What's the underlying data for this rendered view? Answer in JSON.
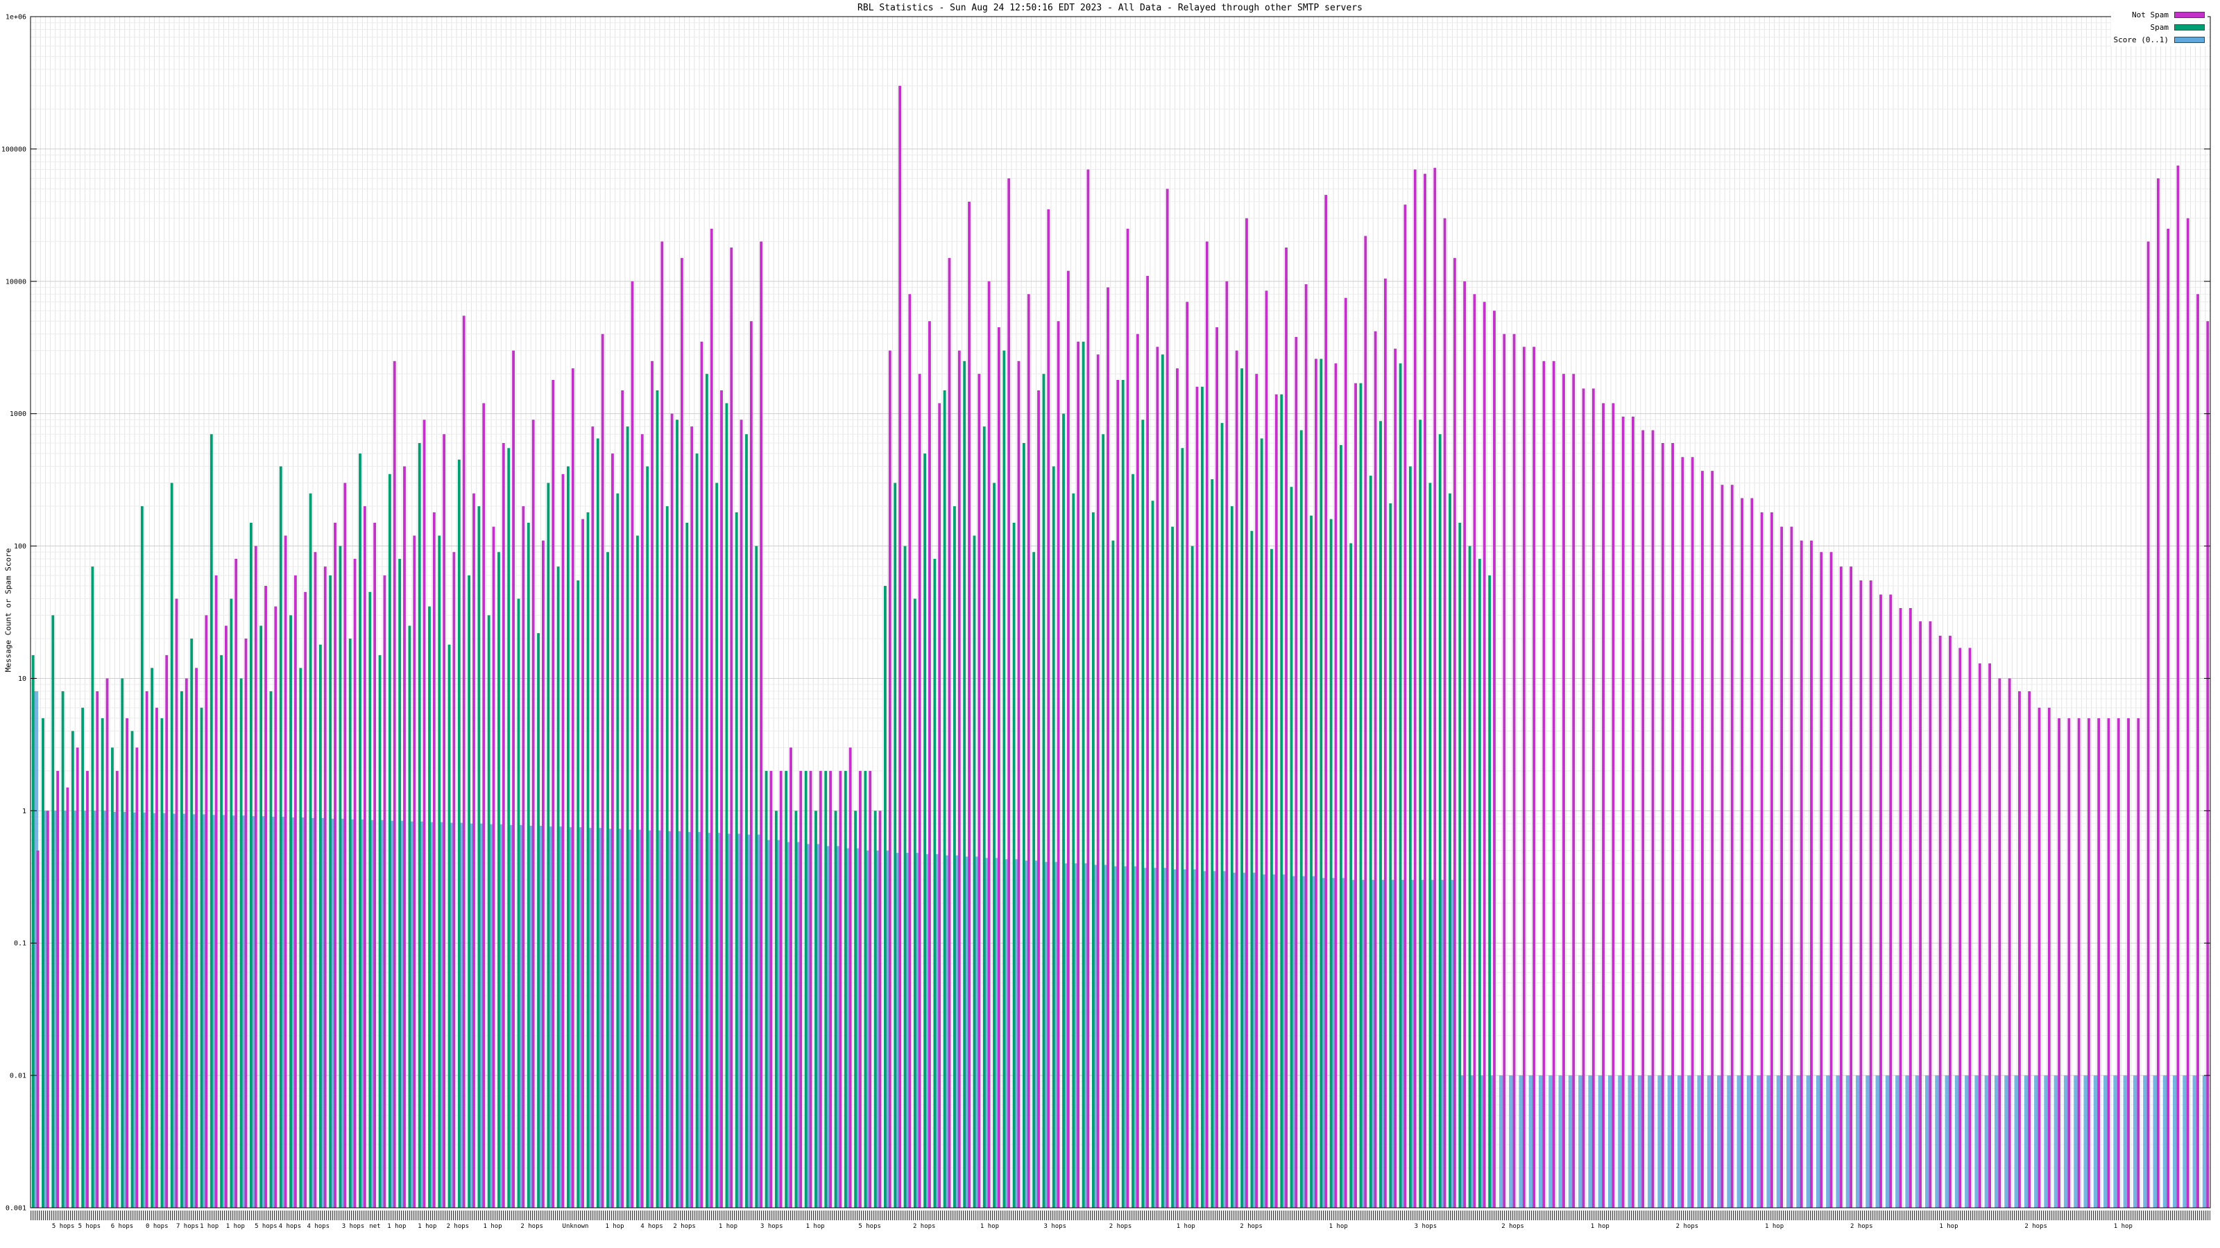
{
  "legend": {
    "items": [
      {
        "label": "Not Spam",
        "color": "#c232c8"
      },
      {
        "label": "Spam",
        "color": "#009e73"
      },
      {
        "label": "Score (0..1)",
        "color": "#5fa8dc"
      }
    ]
  },
  "chart_data": {
    "type": "bar",
    "title": "RBL Statistics - Sun Aug 24 12:50:16 EDT 2023 - All Data - Relayed through other SMTP servers",
    "ylabel": "Message Count or Spam Score",
    "y_log": true,
    "ylim": [
      0.001,
      1000000
    ],
    "grid": true,
    "legend_position": "top-right",
    "y_ticks": [
      {
        "label": "1e+06",
        "value": 1000000
      },
      {
        "label": "100000",
        "value": 100000
      },
      {
        "label": "10000",
        "value": 10000
      },
      {
        "label": "1000",
        "value": 1000
      },
      {
        "label": "100",
        "value": 100
      },
      {
        "label": "10",
        "value": 10
      },
      {
        "label": "1",
        "value": 1
      },
      {
        "label": "0.1",
        "value": 0.1
      },
      {
        "label": "0.01",
        "value": 0.01
      },
      {
        "label": "0.001",
        "value": 0.001
      }
    ],
    "colors": {
      "not_spam": "#c232c8",
      "spam": "#009e73",
      "score": "#5fa8dc"
    },
    "bars_format": [
      "spam_count",
      "not_spam_count",
      "score_0_to_1"
    ],
    "bars": [
      [
        15,
        0.5,
        8
      ],
      [
        5,
        1,
        1
      ],
      [
        30,
        2,
        1
      ],
      [
        8,
        1.5,
        1
      ],
      [
        4,
        3,
        1
      ],
      [
        6,
        2,
        1
      ],
      [
        70,
        8,
        1
      ],
      [
        5,
        10,
        1
      ],
      [
        3,
        2,
        0.98
      ],
      [
        10,
        5,
        0.98
      ],
      [
        4,
        3,
        0.97
      ],
      [
        200,
        8,
        0.97
      ],
      [
        12,
        6,
        0.96
      ],
      [
        5,
        15,
        0.96
      ],
      [
        300,
        40,
        0.95
      ],
      [
        8,
        10,
        0.95
      ],
      [
        20,
        12,
        0.94
      ],
      [
        6,
        30,
        0.94
      ],
      [
        700,
        60,
        0.93
      ],
      [
        15,
        25,
        0.93
      ],
      [
        40,
        80,
        0.92
      ],
      [
        10,
        20,
        0.92
      ],
      [
        150,
        100,
        0.91
      ],
      [
        25,
        50,
        0.91
      ],
      [
        8,
        35,
        0.9
      ],
      [
        400,
        120,
        0.9
      ],
      [
        30,
        60,
        0.89
      ],
      [
        12,
        45,
        0.89
      ],
      [
        250,
        90,
        0.88
      ],
      [
        18,
        70,
        0.88
      ],
      [
        60,
        150,
        0.87
      ],
      [
        100,
        300,
        0.87
      ],
      [
        20,
        80,
        0.86
      ],
      [
        500,
        200,
        0.86
      ],
      [
        45,
        150,
        0.85
      ],
      [
        15,
        60,
        0.85
      ],
      [
        350,
        2500,
        0.84
      ],
      [
        80,
        400,
        0.84
      ],
      [
        25,
        120,
        0.83
      ],
      [
        600,
        900,
        0.83
      ],
      [
        35,
        180,
        0.82
      ],
      [
        120,
        700,
        0.82
      ],
      [
        18,
        90,
        0.81
      ],
      [
        450,
        5500,
        0.81
      ],
      [
        60,
        250,
        0.8
      ],
      [
        200,
        1200,
        0.8
      ],
      [
        30,
        140,
        0.79
      ],
      [
        90,
        600,
        0.79
      ],
      [
        550,
        3000,
        0.78
      ],
      [
        40,
        200,
        0.78
      ],
      [
        150,
        900,
        0.77
      ],
      [
        22,
        110,
        0.77
      ],
      [
        300,
        1800,
        0.76
      ],
      [
        70,
        350,
        0.76
      ],
      [
        400,
        2200,
        0.75
      ],
      [
        55,
        160,
        0.75
      ],
      [
        180,
        800,
        0.74
      ],
      [
        650,
        4000,
        0.74
      ],
      [
        90,
        500,
        0.73
      ],
      [
        250,
        1500,
        0.73
      ],
      [
        800,
        10000,
        0.72
      ],
      [
        120,
        700,
        0.72
      ],
      [
        400,
        2500,
        0.71
      ],
      [
        1500,
        20000,
        0.71
      ],
      [
        200,
        1000,
        0.7
      ],
      [
        900,
        15000,
        0.7
      ],
      [
        150,
        800,
        0.69
      ],
      [
        500,
        3500,
        0.69
      ],
      [
        2000,
        25000,
        0.68
      ],
      [
        300,
        1500,
        0.68
      ],
      [
        1200,
        18000,
        0.67
      ],
      [
        180,
        900,
        0.67
      ],
      [
        700,
        5000,
        0.66
      ],
      [
        100,
        20000,
        0.66
      ],
      [
        2,
        2,
        0.6
      ],
      [
        1,
        2,
        0.6
      ],
      [
        2,
        3,
        0.58
      ],
      [
        1,
        2,
        0.58
      ],
      [
        2,
        2,
        0.56
      ],
      [
        1,
        2,
        0.56
      ],
      [
        2,
        2,
        0.54
      ],
      [
        1,
        2,
        0.54
      ],
      [
        2,
        3,
        0.52
      ],
      [
        1,
        2,
        0.52
      ],
      [
        2,
        2,
        0.5
      ],
      [
        1,
        1,
        0.5
      ],
      [
        50,
        3000,
        0.5
      ],
      [
        300,
        300000,
        0.48
      ],
      [
        100,
        8000,
        0.48
      ],
      [
        40,
        2000,
        0.48
      ],
      [
        500,
        5000,
        0.47
      ],
      [
        80,
        1200,
        0.47
      ],
      [
        1500,
        15000,
        0.46
      ],
      [
        200,
        3000,
        0.46
      ],
      [
        2500,
        40000,
        0.45
      ],
      [
        120,
        2000,
        0.45
      ],
      [
        800,
        10000,
        0.44
      ],
      [
        300,
        4500,
        0.44
      ],
      [
        3000,
        60000,
        0.43
      ],
      [
        150,
        2500,
        0.43
      ],
      [
        600,
        8000,
        0.42
      ],
      [
        90,
        1500,
        0.42
      ],
      [
        2000,
        35000,
        0.41
      ],
      [
        400,
        5000,
        0.41
      ],
      [
        1000,
        12000,
        0.4
      ],
      [
        250,
        3500,
        0.4
      ],
      [
        3500,
        70000,
        0.4
      ],
      [
        180,
        2800,
        0.39
      ],
      [
        700,
        9000,
        0.39
      ],
      [
        110,
        1800,
        0.38
      ],
      [
        1800,
        25000,
        0.38
      ],
      [
        350,
        4000,
        0.38
      ],
      [
        900,
        11000,
        0.37
      ],
      [
        220,
        3200,
        0.37
      ],
      [
        2800,
        50000,
        0.37
      ],
      [
        140,
        2200,
        0.36
      ],
      [
        550,
        7000,
        0.36
      ],
      [
        100,
        1600,
        0.36
      ],
      [
        1600,
        20000,
        0.35
      ],
      [
        320,
        4500,
        0.35
      ],
      [
        850,
        10000,
        0.35
      ],
      [
        200,
        3000,
        0.34
      ],
      [
        2200,
        30000,
        0.34
      ],
      [
        130,
        2000,
        0.34
      ],
      [
        650,
        8500,
        0.33
      ],
      [
        95,
        1400,
        0.33
      ],
      [
        1400,
        18000,
        0.33
      ],
      [
        280,
        3800,
        0.32
      ],
      [
        750,
        9500,
        0.32
      ],
      [
        170,
        2600,
        0.32
      ],
      [
        2600,
        45000,
        0.31
      ],
      [
        160,
        2400,
        0.31
      ],
      [
        580,
        7500,
        0.31
      ],
      [
        105,
        1700,
        0.3
      ],
      [
        1700,
        22000,
        0.3
      ],
      [
        340,
        4200,
        0.3
      ],
      [
        880,
        10500,
        0.3
      ],
      [
        210,
        3100,
        0.3
      ],
      [
        2400,
        38000,
        0.3
      ],
      [
        400,
        70000,
        0.3
      ],
      [
        900,
        65000,
        0.3
      ],
      [
        300,
        72000,
        0.3
      ],
      [
        700,
        30000,
        0.3
      ],
      [
        250,
        15000,
        0.3
      ],
      [
        150,
        10000,
        0.01
      ],
      [
        100,
        8000,
        0.01
      ],
      [
        80,
        7000,
        0.01
      ],
      [
        60,
        6000,
        0.01
      ],
      [
        0,
        4000,
        0.01
      ],
      [
        0,
        4000,
        0.01
      ],
      [
        0,
        3200,
        0.01
      ],
      [
        0,
        3200,
        0.01
      ],
      [
        0,
        2500,
        0.01
      ],
      [
        0,
        2500,
        0.01
      ],
      [
        0,
        2000,
        0.01
      ],
      [
        0,
        2000,
        0.01
      ],
      [
        0,
        1550,
        0.01
      ],
      [
        0,
        1550,
        0.01
      ],
      [
        0,
        1200,
        0.01
      ],
      [
        0,
        1200,
        0.01
      ],
      [
        0,
        950,
        0.01
      ],
      [
        0,
        950,
        0.01
      ],
      [
        0,
        750,
        0.01
      ],
      [
        0,
        750,
        0.01
      ],
      [
        0,
        600,
        0.01
      ],
      [
        0,
        600,
        0.01
      ],
      [
        0,
        470,
        0.01
      ],
      [
        0,
        470,
        0.01
      ],
      [
        0,
        370,
        0.01
      ],
      [
        0,
        370,
        0.01
      ],
      [
        0,
        290,
        0.01
      ],
      [
        0,
        290,
        0.01
      ],
      [
        0,
        230,
        0.01
      ],
      [
        0,
        230,
        0.01
      ],
      [
        0,
        180,
        0.01
      ],
      [
        0,
        180,
        0.01
      ],
      [
        0,
        140,
        0.01
      ],
      [
        0,
        140,
        0.01
      ],
      [
        0,
        110,
        0.01
      ],
      [
        0,
        110,
        0.01
      ],
      [
        0,
        90,
        0.01
      ],
      [
        0,
        90,
        0.01
      ],
      [
        0,
        70,
        0.01
      ],
      [
        0,
        70,
        0.01
      ],
      [
        0,
        55,
        0.01
      ],
      [
        0,
        55,
        0.01
      ],
      [
        0,
        43,
        0.01
      ],
      [
        0,
        43,
        0.01
      ],
      [
        0,
        34,
        0.01
      ],
      [
        0,
        34,
        0.01
      ],
      [
        0,
        27,
        0.01
      ],
      [
        0,
        27,
        0.01
      ],
      [
        0,
        21,
        0.01
      ],
      [
        0,
        21,
        0.01
      ],
      [
        0,
        17,
        0.01
      ],
      [
        0,
        17,
        0.01
      ],
      [
        0,
        13,
        0.01
      ],
      [
        0,
        13,
        0.01
      ],
      [
        0,
        10,
        0.01
      ],
      [
        0,
        10,
        0.01
      ],
      [
        0,
        8,
        0.01
      ],
      [
        0,
        8,
        0.01
      ],
      [
        0,
        6,
        0.01
      ],
      [
        0,
        6,
        0.01
      ],
      [
        0,
        5,
        0.01
      ],
      [
        0,
        5,
        0.01
      ],
      [
        0,
        5,
        0.01
      ],
      [
        0,
        5,
        0.01
      ],
      [
        0,
        5,
        0.01
      ],
      [
        0,
        5,
        0.01
      ],
      [
        0,
        5,
        0.01
      ],
      [
        0,
        5,
        0.01
      ],
      [
        0,
        5,
        0.01
      ],
      [
        0,
        20000,
        0.01
      ],
      [
        0,
        60000,
        0.01
      ],
      [
        0,
        25000,
        0.01
      ],
      [
        0,
        75000,
        0.01
      ],
      [
        0,
        30000,
        0.01
      ],
      [
        0,
        8000,
        0.01
      ],
      [
        0,
        5000,
        0.01
      ]
    ],
    "x_group_labels": [
      {
        "pos": 0.015,
        "text": "5 hops"
      },
      {
        "pos": 0.027,
        "text": "5 hops"
      },
      {
        "pos": 0.042,
        "text": "6 hops"
      },
      {
        "pos": 0.058,
        "text": "0 hops"
      },
      {
        "pos": 0.072,
        "text": "7 hops"
      },
      {
        "pos": 0.082,
        "text": "1 hop"
      },
      {
        "pos": 0.094,
        "text": "1 hop"
      },
      {
        "pos": 0.108,
        "text": "5 hops"
      },
      {
        "pos": 0.119,
        "text": "4 hops"
      },
      {
        "pos": 0.132,
        "text": "4 hops"
      },
      {
        "pos": 0.148,
        "text": "3 hops"
      },
      {
        "pos": 0.158,
        "text": "net"
      },
      {
        "pos": 0.168,
        "text": "1 hop"
      },
      {
        "pos": 0.182,
        "text": "1 hop"
      },
      {
        "pos": 0.196,
        "text": "2 hops"
      },
      {
        "pos": 0.212,
        "text": "1 hop"
      },
      {
        "pos": 0.23,
        "text": "2 hops"
      },
      {
        "pos": 0.25,
        "text": "Unknown"
      },
      {
        "pos": 0.268,
        "text": "1 hop"
      },
      {
        "pos": 0.285,
        "text": "4 hops"
      },
      {
        "pos": 0.3,
        "text": "2 hops"
      },
      {
        "pos": 0.32,
        "text": "1 hop"
      },
      {
        "pos": 0.34,
        "text": "3 hops"
      },
      {
        "pos": 0.36,
        "text": "1 hop"
      },
      {
        "pos": 0.385,
        "text": "5 hops"
      },
      {
        "pos": 0.41,
        "text": "2 hops"
      },
      {
        "pos": 0.44,
        "text": "1 hop"
      },
      {
        "pos": 0.47,
        "text": "3 hops"
      },
      {
        "pos": 0.5,
        "text": "2 hops"
      },
      {
        "pos": 0.53,
        "text": "1 hop"
      },
      {
        "pos": 0.56,
        "text": "2 hops"
      },
      {
        "pos": 0.6,
        "text": "1 hop"
      },
      {
        "pos": 0.64,
        "text": "3 hops"
      },
      {
        "pos": 0.68,
        "text": "2 hops"
      },
      {
        "pos": 0.72,
        "text": "1 hop"
      },
      {
        "pos": 0.76,
        "text": "2 hops"
      },
      {
        "pos": 0.8,
        "text": "1 hop"
      },
      {
        "pos": 0.84,
        "text": "2 hops"
      },
      {
        "pos": 0.88,
        "text": "1 hop"
      },
      {
        "pos": 0.92,
        "text": "2 hops"
      },
      {
        "pos": 0.96,
        "text": "1 hop"
      }
    ]
  }
}
